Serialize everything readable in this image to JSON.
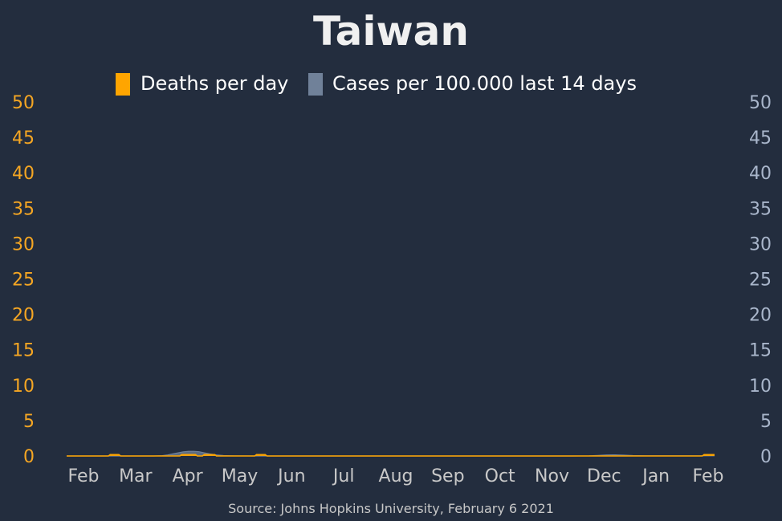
{
  "chart_data": {
    "type": "bar",
    "title": "Taiwan",
    "source": "Source: Johns Hopkins University, February 6 2021",
    "legend": [
      {
        "label": "Deaths per day",
        "color": "#ffa500"
      },
      {
        "label": "Cases per 100.000 last 14 days",
        "color": "#708199"
      }
    ],
    "y_left": {
      "min": 0,
      "max": 50,
      "ticks": [
        "0",
        "5",
        "10",
        "15",
        "20",
        "25",
        "30",
        "35",
        "40",
        "45",
        "50"
      ]
    },
    "y_right": {
      "min": 0,
      "max": 50,
      "ticks": [
        "0",
        "5",
        "10",
        "15",
        "20",
        "25",
        "30",
        "35",
        "40",
        "45",
        "50"
      ]
    },
    "x_ticks": [
      "Feb",
      "Mar",
      "Apr",
      "May",
      "Jun",
      "Jul",
      "Aug",
      "Sep",
      "Oct",
      "Nov",
      "Dec",
      "Jan",
      "Feb"
    ],
    "x_range_days": [
      0,
      372
    ],
    "series": [
      {
        "name": "Cases per 100.000 last 14 days",
        "axis": "right",
        "color": "#708199",
        "points": [
          [
            0,
            0
          ],
          [
            50,
            0
          ],
          [
            55,
            0.05
          ],
          [
            58,
            0.15
          ],
          [
            61,
            0.3
          ],
          [
            64,
            0.45
          ],
          [
            67,
            0.58
          ],
          [
            70,
            0.65
          ],
          [
            73,
            0.66
          ],
          [
            76,
            0.6
          ],
          [
            79,
            0.45
          ],
          [
            82,
            0.3
          ],
          [
            86,
            0.15
          ],
          [
            90,
            0.06
          ],
          [
            96,
            0.02
          ],
          [
            110,
            0
          ],
          [
            290,
            0
          ],
          [
            300,
            0.02
          ],
          [
            305,
            0.08
          ],
          [
            310,
            0.14
          ],
          [
            315,
            0.16
          ],
          [
            320,
            0.12
          ],
          [
            325,
            0.06
          ],
          [
            332,
            0.03
          ],
          [
            372,
            0.02
          ]
        ]
      },
      {
        "name": "Deaths per day",
        "axis": "left",
        "color": "#ffa500",
        "points": [
          [
            0,
            0
          ],
          [
            24,
            0
          ],
          [
            25,
            0.2
          ],
          [
            30,
            0.2
          ],
          [
            31,
            0
          ],
          [
            65,
            0
          ],
          [
            66,
            0.2
          ],
          [
            74,
            0.2
          ],
          [
            75,
            0
          ],
          [
            78,
            0
          ],
          [
            79,
            0.2
          ],
          [
            85,
            0.2
          ],
          [
            86,
            0
          ],
          [
            108,
            0
          ],
          [
            109,
            0.2
          ],
          [
            114,
            0.2
          ],
          [
            115,
            0
          ],
          [
            365,
            0
          ],
          [
            366,
            0.2
          ],
          [
            372,
            0.2
          ]
        ]
      }
    ]
  }
}
